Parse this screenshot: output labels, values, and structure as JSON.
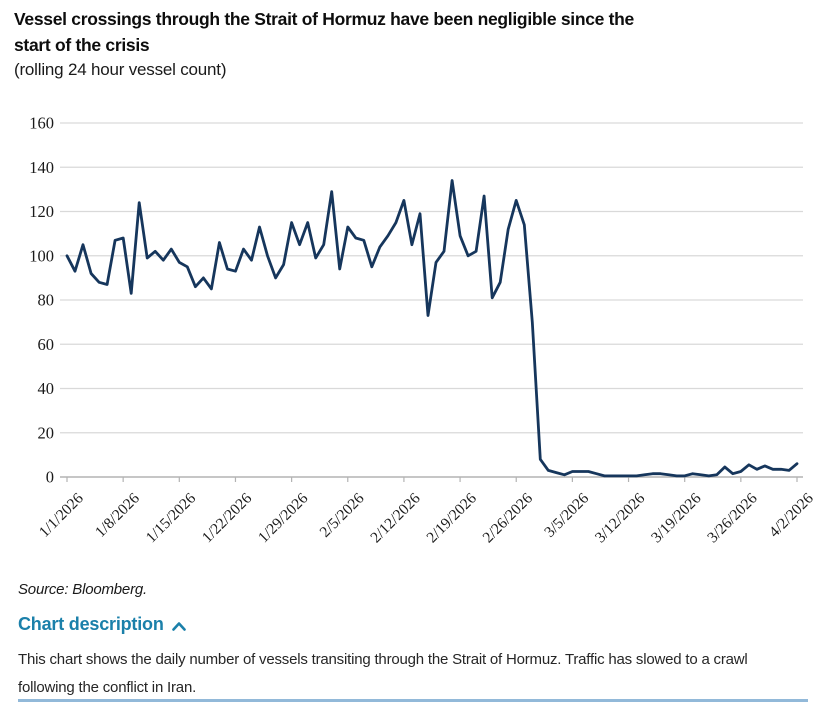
{
  "header": {
    "title": "Vessel crossings through the Strait of Hormuz have been negligible since the start of the crisis",
    "subtitle": "(rolling 24 hour vessel count)"
  },
  "footer": {
    "source": "Source: Bloomberg.",
    "chart_description_label": "Chart description",
    "chart_description_text": "This chart shows the daily number of vessels transiting through the Strait of Hormuz. Traffic has slowed to a crawl following the conflict in Iran."
  },
  "colors": {
    "line": "#16365c",
    "grid": "#d9d9d9",
    "axis": "#b3b3b3",
    "tick_text": "#1a1a1a",
    "link": "#1b80aa",
    "rule": "#92b9d9"
  },
  "chart_data": {
    "type": "line",
    "title": "Vessel crossings through the Strait of Hormuz have been negligible since the start of the crisis",
    "subtitle": "(rolling 24 hour vessel count)",
    "xlabel": "",
    "ylabel": "",
    "ylim": [
      0,
      160
    ],
    "y_ticks": [
      0,
      20,
      40,
      60,
      80,
      100,
      120,
      140,
      160
    ],
    "grid": "horizontal",
    "legend": "none",
    "x_unit": "day",
    "x_tick_labels": [
      "1/1/2026",
      "1/8/2026",
      "1/15/2026",
      "1/22/2026",
      "1/29/2026",
      "2/5/2026",
      "2/12/2026",
      "2/19/2026",
      "2/26/2026",
      "3/5/2026",
      "3/12/2026",
      "3/19/2026",
      "3/26/2026",
      "4/2/2026"
    ],
    "x_tick_positions": [
      0,
      7,
      14,
      21,
      28,
      35,
      42,
      49,
      56,
      63,
      70,
      77,
      84,
      91
    ],
    "series": [
      {
        "name": "Rolling 24 hour vessel count",
        "values": [
          100,
          93,
          105,
          92,
          88,
          87,
          107,
          108,
          83,
          124,
          99,
          102,
          98,
          103,
          97,
          95,
          86,
          90,
          85,
          106,
          94,
          93,
          103,
          98,
          113,
          100,
          90,
          96,
          115,
          105,
          115,
          99,
          105,
          129,
          94,
          113,
          108,
          107,
          95,
          104,
          109,
          115,
          125,
          105,
          119,
          73,
          97,
          102,
          134,
          109,
          100,
          102,
          127,
          81,
          88,
          112,
          125,
          114,
          70,
          8,
          3,
          2,
          1,
          2.5,
          2.5,
          2.5,
          1.5,
          0.5,
          0.5,
          0.5,
          0.5,
          0.5,
          1,
          1.5,
          1.5,
          1,
          0.5,
          0.5,
          1.5,
          1,
          0.5,
          1,
          4.5,
          1.5,
          2.5,
          5.5,
          3.5,
          5,
          3.5,
          3.5,
          3,
          6
        ]
      }
    ]
  }
}
